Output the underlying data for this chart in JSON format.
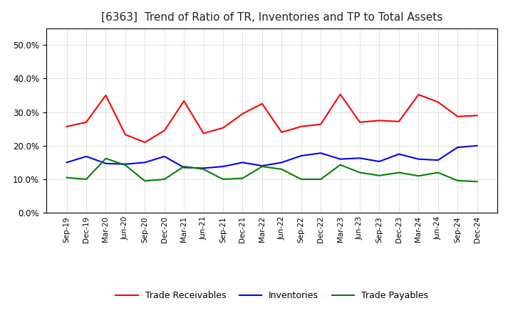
{
  "title": "[6363]  Trend of Ratio of TR, Inventories and TP to Total Assets",
  "x_labels": [
    "Sep-19",
    "Dec-19",
    "Mar-20",
    "Jun-20",
    "Sep-20",
    "Dec-20",
    "Mar-21",
    "Jun-21",
    "Sep-21",
    "Dec-21",
    "Mar-22",
    "Jun-22",
    "Sep-22",
    "Dec-22",
    "Mar-23",
    "Jun-23",
    "Sep-23",
    "Dec-23",
    "Mar-24",
    "Jun-24",
    "Sep-24",
    "Dec-24"
  ],
  "trade_receivables": [
    0.257,
    0.27,
    0.35,
    0.233,
    0.21,
    0.245,
    0.333,
    0.237,
    0.253,
    0.295,
    0.325,
    0.24,
    0.257,
    0.264,
    0.353,
    0.27,
    0.275,
    0.272,
    0.352,
    0.33,
    0.287,
    0.29
  ],
  "inventories": [
    0.15,
    0.168,
    0.147,
    0.145,
    0.15,
    0.168,
    0.135,
    0.133,
    0.138,
    0.15,
    0.14,
    0.15,
    0.17,
    0.178,
    0.16,
    0.163,
    0.153,
    0.175,
    0.16,
    0.157,
    0.195,
    0.2
  ],
  "trade_payables": [
    0.105,
    0.1,
    0.162,
    0.142,
    0.095,
    0.1,
    0.138,
    0.13,
    0.1,
    0.103,
    0.138,
    0.13,
    0.1,
    0.1,
    0.143,
    0.12,
    0.111,
    0.12,
    0.11,
    0.12,
    0.096,
    0.093
  ],
  "ylim": [
    0.0,
    0.55
  ],
  "yticks": [
    0.0,
    0.1,
    0.2,
    0.3,
    0.4,
    0.5
  ],
  "line_colors": {
    "trade_receivables": "#ff0000",
    "inventories": "#0000ff",
    "trade_payables": "#008000"
  },
  "background_color": "#ffffff",
  "plot_bg_color": "#ffffff",
  "grid_color": "#aaaaaa",
  "title_fontsize": 11,
  "legend_labels": [
    "Trade Receivables",
    "Inventories",
    "Trade Payables"
  ]
}
